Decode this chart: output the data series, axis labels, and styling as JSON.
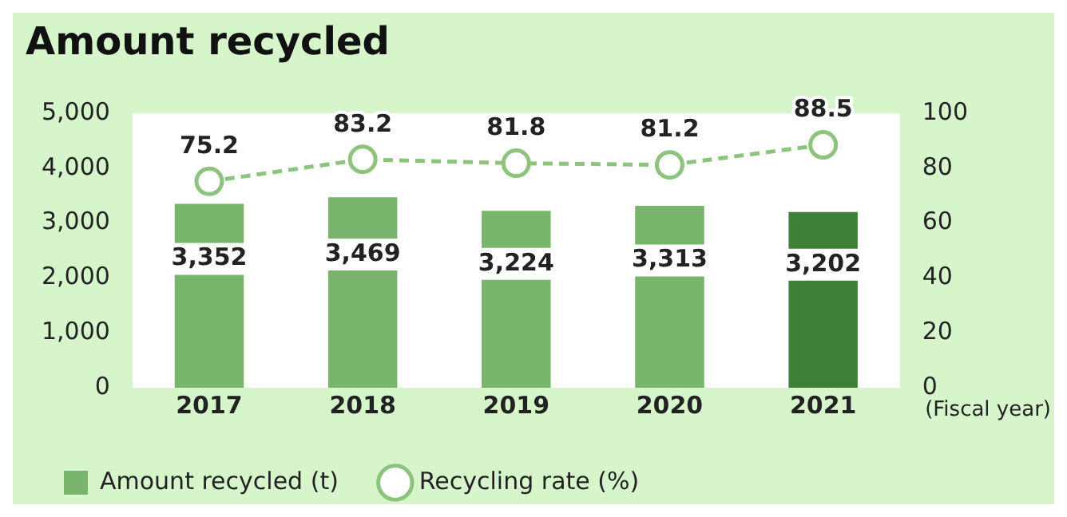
{
  "chart_data": {
    "type": "bar",
    "title": "Amount recycled",
    "xlabel": "(Fiscal year)",
    "categories": [
      "2017",
      "2018",
      "2019",
      "2020",
      "2021"
    ],
    "series": [
      {
        "name": "Amount recycled (t)",
        "color": "#78b46c",
        "colors": [
          "#78b46c",
          "#78b46c",
          "#78b46c",
          "#78b46c",
          "#3f8038"
        ],
        "values": [
          3352,
          3469,
          3224,
          3313,
          3202
        ],
        "value_labels": [
          "3,352",
          "3,469",
          "3,224",
          "3,313",
          "3,202"
        ]
      },
      {
        "name": "Recycling rate (%)",
        "type": "line",
        "axis": "y2",
        "color": "#8cc47e",
        "values": [
          75.2,
          83.2,
          81.8,
          81.2,
          88.5
        ],
        "marker": "circle",
        "line_style": "dashed"
      }
    ],
    "ylim": [
      0,
      5000
    ],
    "yticks": [
      0,
      {
        "value": 1000,
        "label": "1,000"
      },
      {
        "value": 2000,
        "label": "2,000"
      },
      {
        "value": 3000,
        "label": "3,000"
      },
      {
        "value": 4000,
        "label": "4,000"
      },
      {
        "value": 5000,
        "label": "5,000"
      }
    ],
    "y2lim": [
      0,
      100
    ],
    "y2ticks": [
      0,
      20,
      40,
      60,
      80,
      100
    ],
    "data_labels": true,
    "grid": false,
    "legend": "bottom"
  }
}
